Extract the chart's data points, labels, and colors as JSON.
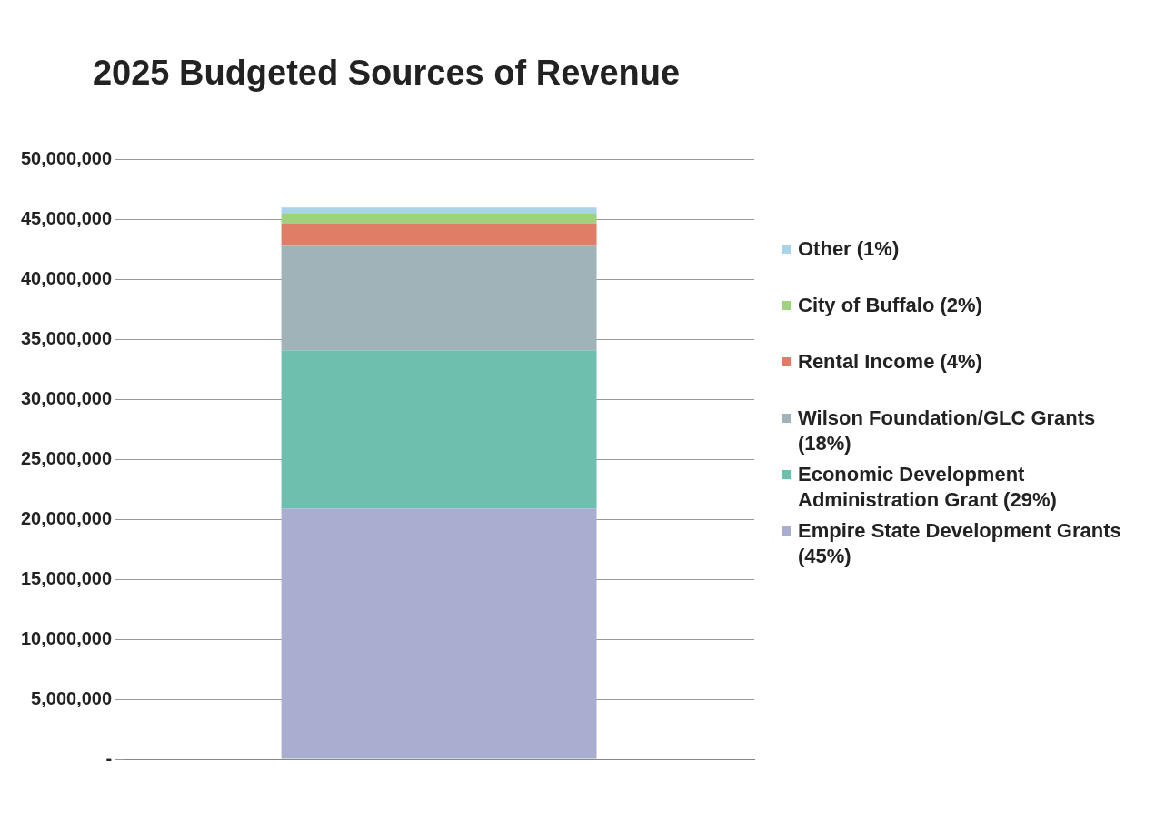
{
  "chart_data": {
    "type": "bar",
    "title": "2025 Budgeted Sources of Revenue",
    "stacked": true,
    "categories": [
      null
    ],
    "series": [
      {
        "name": "Empire State Development Grants (45%)",
        "color": "#a9aed0",
        "values": [
          20900000
        ]
      },
      {
        "name": "Economic Development Administration Grant (29%)",
        "color": "#6fbfaf",
        "values": [
          13200000
        ]
      },
      {
        "name": "Wilson Foundation/GLC Grants (18%)",
        "color": "#9fb3b8",
        "values": [
          8700000
        ]
      },
      {
        "name": "Rental Income (4%)",
        "color": "#e07d66",
        "values": [
          1900000
        ]
      },
      {
        "name": "City of Buffalo (2%)",
        "color": "#9fd27c",
        "values": [
          800000
        ]
      },
      {
        "name": "Other (1%)",
        "color": "#a9d3e6",
        "values": [
          500000
        ]
      }
    ],
    "ylim": [
      0,
      50000000
    ],
    "yticks": [
      {
        "value": 0,
        "label": "-"
      },
      {
        "value": 5000000,
        "label": "5,000,000"
      },
      {
        "value": 10000000,
        "label": "10,000,000"
      },
      {
        "value": 15000000,
        "label": "15,000,000"
      },
      {
        "value": 20000000,
        "label": "20,000,000"
      },
      {
        "value": 25000000,
        "label": "25,000,000"
      },
      {
        "value": 30000000,
        "label": "30,000,000"
      },
      {
        "value": 35000000,
        "label": "35,000,000"
      },
      {
        "value": 40000000,
        "label": "40,000,000"
      },
      {
        "value": 45000000,
        "label": "45,000,000"
      },
      {
        "value": 50000000,
        "label": "50,000,000"
      }
    ],
    "grid": "y",
    "legend": "right",
    "tick_labels": "y"
  }
}
